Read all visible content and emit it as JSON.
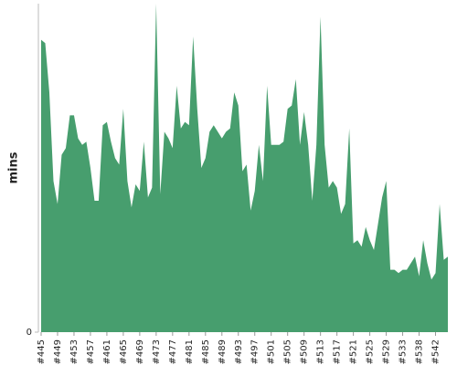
{
  "chart_data": {
    "type": "area",
    "y_label": "mins",
    "color": "#479e6e",
    "categories": [
      "#445",
      null,
      null,
      null,
      "#449",
      null,
      null,
      null,
      "#453",
      null,
      null,
      null,
      "#457",
      null,
      null,
      null,
      "#461",
      null,
      null,
      null,
      "#465",
      null,
      null,
      null,
      "#469",
      null,
      null,
      null,
      "#473",
      null,
      null,
      null,
      "#477",
      null,
      null,
      null,
      "#481",
      null,
      null,
      null,
      "#485",
      null,
      null,
      null,
      "#489",
      null,
      null,
      null,
      "#493",
      null,
      null,
      null,
      "#497",
      null,
      null,
      null,
      "#501",
      null,
      null,
      null,
      "#505",
      null,
      null,
      null,
      "#509",
      null,
      null,
      null,
      "#513",
      null,
      null,
      null,
      "#517",
      null,
      null,
      null,
      "#521",
      null,
      null,
      null,
      "#525",
      null,
      null,
      null,
      "#529",
      null,
      null,
      null,
      "#533",
      null,
      null,
      null,
      "#538",
      null,
      null,
      null,
      "#542",
      null,
      null,
      null
    ],
    "values": [
      89,
      88,
      73,
      46,
      39,
      54,
      56,
      66,
      66,
      59,
      57,
      58,
      50,
      40,
      40,
      63,
      64,
      58,
      53,
      51,
      68,
      46,
      38,
      45,
      43,
      58,
      41,
      44,
      100,
      42,
      61,
      59,
      56,
      75,
      62,
      64,
      63,
      90,
      68,
      50,
      53,
      61,
      63,
      61,
      59,
      61,
      62,
      73,
      69,
      49,
      51,
      37,
      43,
      57,
      46,
      75,
      57,
      57,
      57,
      58,
      68,
      69,
      77,
      57,
      67,
      57,
      40,
      57,
      96,
      57,
      44,
      46,
      44,
      36,
      39,
      62,
      27,
      28,
      26,
      32,
      28,
      25,
      33,
      41,
      46,
      19,
      19,
      18,
      19,
      19,
      21,
      23,
      17,
      28,
      21,
      16,
      18,
      39,
      22,
      23
    ],
    "ylim": [
      0,
      100
    ],
    "yticks": [
      0
    ]
  }
}
